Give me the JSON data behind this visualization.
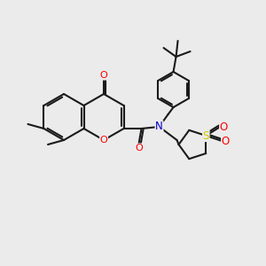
{
  "bg_color": "#ebebeb",
  "bond_color": "#1a1a1a",
  "bond_width": 1.5,
  "atom_colors": {
    "O": "#ff0000",
    "N": "#0000cc",
    "S": "#cccc00",
    "C": "#1a1a1a"
  },
  "figsize": [
    3.0,
    3.0
  ],
  "dpi": 100,
  "xlim": [
    0,
    300
  ],
  "ylim": [
    0,
    300
  ]
}
